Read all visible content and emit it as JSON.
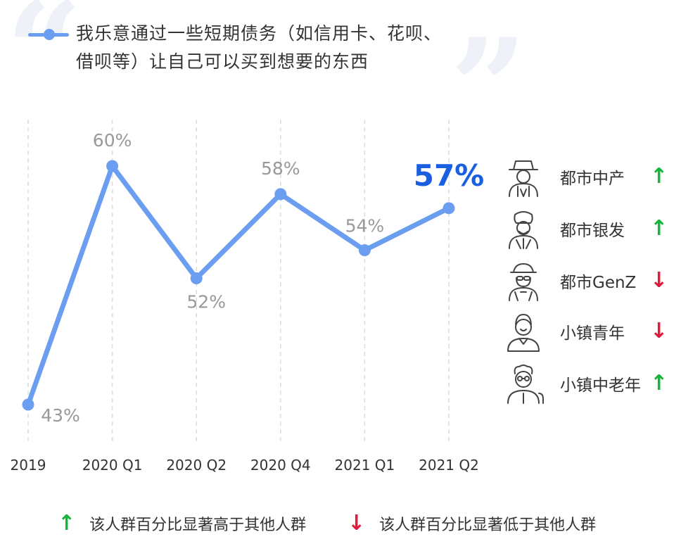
{
  "chart_data": {
    "type": "line",
    "title": "我乐意通过一些短期债务（如信用卡、花呗、借呗等）让自己可以买到想要的东西",
    "categories": [
      "2019",
      "2020 Q1",
      "2020 Q2",
      "2020 Q4",
      "2021 Q1",
      "2021 Q2"
    ],
    "values": [
      43,
      60,
      52,
      58,
      54,
      57
    ],
    "value_labels": [
      "43%",
      "60%",
      "52%",
      "58%",
      "54%",
      "57%"
    ],
    "highlight_index": 5,
    "line_color": "#6b9ef0",
    "highlight_color": "#1a5fe0",
    "label_color": "#999999",
    "ylim": [
      40,
      63
    ],
    "grid": "vertical-dashed"
  },
  "segments": [
    {
      "label": "都市中产",
      "trend": "up",
      "icon": "middle-class-person-icon"
    },
    {
      "label": "都市银发",
      "trend": "up",
      "icon": "elderly-person-icon"
    },
    {
      "label": "都市GenZ",
      "trend": "down",
      "icon": "genz-person-icon"
    },
    {
      "label": "小镇青年",
      "trend": "down",
      "icon": "young-person-icon"
    },
    {
      "label": "小镇中老年",
      "trend": "up",
      "icon": "senior-person-icon"
    }
  ],
  "arrows": {
    "up": "↑",
    "down": "↓",
    "up_color": "#19b43a",
    "down_color": "#e01b3c"
  },
  "footnote": {
    "up_text": "该人群百分比显著高于其他人群",
    "down_text": "该人群百分比显著低于其他人群"
  }
}
